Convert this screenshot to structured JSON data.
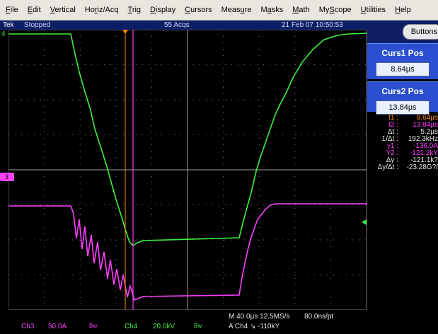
{
  "menu": {
    "items": [
      "File",
      "Edit",
      "Vertical",
      "Horiz/Acq",
      "Trig",
      "Display",
      "Cursors",
      "Measure",
      "Masks",
      "Math",
      "MyScope",
      "Utilities",
      "Help"
    ],
    "underline_index": [
      0,
      0,
      0,
      2,
      0,
      0,
      0,
      4,
      1,
      0,
      2,
      0,
      0
    ]
  },
  "status": {
    "brand": "Tek",
    "state": "Stopped",
    "acqs": "55 Acqs",
    "datetime": "21 Feb 07 10:50:53"
  },
  "right_panel": {
    "button_label": "Buttons",
    "curs1": {
      "title": "Curs1 Pos",
      "value": "8.64µs"
    },
    "curs2": {
      "title": "Curs2 Pos",
      "value": "13.84µs"
    },
    "readouts": [
      {
        "label": "t1 :",
        "value": "8.64µs",
        "color": "orange"
      },
      {
        "label": "t2 :",
        "value": "13.84µs",
        "color": "pink"
      },
      {
        "label": "Δt :",
        "value": "5.2µs",
        "color": "white"
      },
      {
        "label": "1/Δt :",
        "value": "192.3kHz",
        "color": "white"
      },
      {
        "label": "y1 :",
        "value": "-136.0A",
        "color": "pink"
      },
      {
        "label": "Y2 :",
        "value": "-121.2kY",
        "color": "pink"
      },
      {
        "label": "Δy :",
        "value": "-121.1k?",
        "color": "white"
      },
      {
        "label": "Δy/Δt :",
        "value": "-23.28G?/",
        "color": "white"
      }
    ]
  },
  "screen": {
    "ch3_marker": "3",
    "ch4_marker": "4",
    "colors": {
      "ch4": "#3df23d",
      "ch3": "#ff40ff",
      "grid": "#7a7a7a",
      "cursor1": "#ff8a00",
      "cursor2": "#ff40ff"
    }
  },
  "footer": {
    "ch3_label": "Ch3",
    "ch3_scale": "50.0A",
    "ch3_bw": "Bw",
    "ch4_label": "Ch4",
    "ch4_scale": "20.0kV",
    "ch4_bw": "Bw",
    "timebase": "M 40.0µs  12.5MS/s",
    "sample_interval": "80.0ns/pt",
    "trigger": "A  Ch4  ↘  -110kY"
  }
}
